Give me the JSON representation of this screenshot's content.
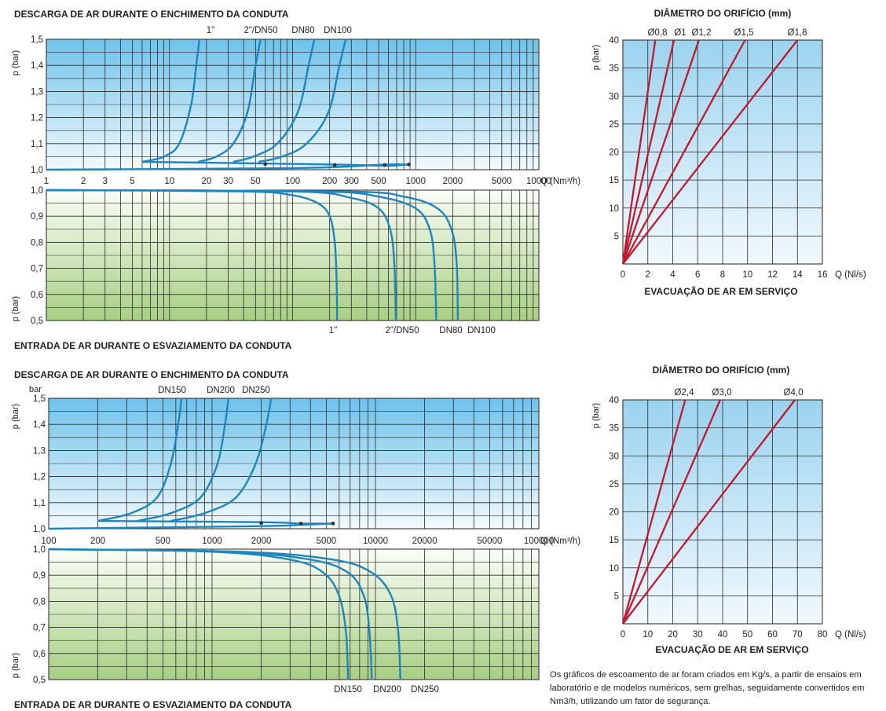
{
  "chart_data": [
    {
      "id": "air_discharge_small",
      "type": "line",
      "title": "DESCARGA DE AR DURANTE O ENCHIMENTO DA CONDUTA",
      "ylabel": "p (bar)",
      "xlabel": "Q (Nm³/h)",
      "xscale": "log",
      "xlim": [
        1,
        10000
      ],
      "ylim": [
        1.0,
        1.5
      ],
      "xticks": [
        1,
        2,
        3,
        5,
        10,
        20,
        30,
        50,
        100,
        200,
        300,
        500,
        1000,
        2000,
        5000,
        10000
      ],
      "xtick_labels": [
        "1",
        "2",
        "3",
        "5",
        "10",
        "20",
        "30",
        "50",
        "100",
        "200",
        "300",
        "500",
        "1000",
        "2000",
        "5000",
        "10000"
      ],
      "yticks": [
        1.0,
        1.1,
        1.2,
        1.3,
        1.4,
        1.5
      ],
      "ytick_labels": [
        "1,0",
        "1,1",
        "1,2",
        "1,3",
        "1,4",
        "1,5"
      ],
      "grid": true,
      "series": [
        {
          "name": "1\"",
          "points": [
            [
              6,
              1.03
            ],
            [
              9,
              1.05
            ],
            [
              12,
              1.1
            ],
            [
              15,
              1.25
            ],
            [
              16.5,
              1.4
            ],
            [
              17.5,
              1.5
            ]
          ],
          "color": "#1f86bd"
        },
        {
          "name": "2\"/DN50",
          "points": [
            [
              17,
              1.03
            ],
            [
              24,
              1.05
            ],
            [
              33,
              1.1
            ],
            [
              43,
              1.22
            ],
            [
              50,
              1.4
            ],
            [
              55,
              1.5
            ]
          ],
          "color": "#1f86bd"
        },
        {
          "name": "DN80",
          "points": [
            [
              33,
              1.03
            ],
            [
              48,
              1.05
            ],
            [
              75,
              1.1
            ],
            [
              110,
              1.22
            ],
            [
              135,
              1.4
            ],
            [
              150,
              1.5
            ]
          ],
          "color": "#1f86bd"
        },
        {
          "name": "DN100",
          "points": [
            [
              53,
              1.03
            ],
            [
              82,
              1.05
            ],
            [
              130,
              1.1
            ],
            [
              195,
              1.22
            ],
            [
              240,
              1.4
            ],
            [
              270,
              1.5
            ]
          ],
          "color": "#1f86bd"
        }
      ],
      "axis_series": [
        {
          "points": [
            [
              6,
              1.03
            ],
            [
              220,
              1.02
            ],
            [
              560,
              1.015
            ],
            [
              880,
              1.02
            ]
          ]
        },
        {
          "points": [
            [
              1,
              1.0
            ],
            [
              60,
              1.005
            ],
            [
              220,
              1.01
            ],
            [
              560,
              1.02
            ],
            [
              880,
              1.02
            ]
          ]
        }
      ],
      "markers": [
        [
          60,
          1.022
        ],
        [
          220,
          1.018
        ],
        [
          560,
          1.018
        ],
        [
          880,
          1.02
        ]
      ]
    },
    {
      "id": "air_intake_small",
      "type": "line",
      "title": "ENTRADA DE AR DURANTE O ESVAZIAMENTO DA CONDUTA",
      "ylabel": "p (bar)",
      "xscale": "log",
      "xlim": [
        1,
        10000
      ],
      "ylim": [
        0.5,
        1.0
      ],
      "yticks": [
        0.5,
        0.6,
        0.7,
        0.8,
        0.9,
        1.0
      ],
      "ytick_labels": [
        "0,5",
        "0,6",
        "0,7",
        "0,8",
        "0,9",
        "1,0"
      ],
      "grid": true,
      "series": [
        {
          "name": "1\"",
          "points": [
            [
              1,
              1.0
            ],
            [
              40,
              0.995
            ],
            [
              100,
              0.98
            ],
            [
              160,
              0.95
            ],
            [
              200,
              0.9
            ],
            [
              220,
              0.8
            ],
            [
              228,
              0.65
            ],
            [
              230,
              0.5
            ]
          ],
          "color": "#1f86bd"
        },
        {
          "name": "2\"/DN50",
          "points": [
            [
              1,
              1.0
            ],
            [
              100,
              0.995
            ],
            [
              300,
              0.97
            ],
            [
              500,
              0.93
            ],
            [
              620,
              0.85
            ],
            [
              670,
              0.72
            ],
            [
              690,
              0.5
            ]
          ],
          "color": "#1f86bd"
        },
        {
          "name": "DN80",
          "points": [
            [
              1,
              1.0
            ],
            [
              150,
              0.995
            ],
            [
              500,
              0.975
            ],
            [
              1000,
              0.93
            ],
            [
              1300,
              0.85
            ],
            [
              1420,
              0.72
            ],
            [
              1470,
              0.5
            ]
          ],
          "color": "#1f86bd"
        },
        {
          "name": "DN100",
          "points": [
            [
              1,
              1.0
            ],
            [
              250,
              0.995
            ],
            [
              800,
              0.975
            ],
            [
              1500,
              0.93
            ],
            [
              1950,
              0.85
            ],
            [
              2150,
              0.72
            ],
            [
              2200,
              0.5
            ]
          ],
          "color": "#1f86bd"
        }
      ]
    },
    {
      "id": "air_evacuation_small",
      "type": "line",
      "title": "DIÂMETRO DO ORIFÍCIO (mm)",
      "subtitle": "EVACUAÇÃO DE AR EM SERVIÇO",
      "xlabel": "Q (Nl/s)",
      "ylabel": "p (bar)",
      "xlim": [
        0,
        16
      ],
      "ylim": [
        0,
        40
      ],
      "xticks": [
        0,
        2,
        4,
        6,
        8,
        10,
        12,
        14,
        16
      ],
      "yticks": [
        5,
        10,
        15,
        20,
        25,
        30,
        35,
        40
      ],
      "grid": true,
      "series": [
        {
          "name": "Ø0,8",
          "points": [
            [
              0,
              0
            ],
            [
              2.6,
              40
            ]
          ],
          "color": "#c3182e"
        },
        {
          "name": "Ø1",
          "points": [
            [
              0,
              0
            ],
            [
              4.1,
              40
            ]
          ],
          "color": "#c3182e"
        },
        {
          "name": "Ø1,2",
          "points": [
            [
              0,
              0
            ],
            [
              6.1,
              40
            ]
          ],
          "color": "#c3182e"
        },
        {
          "name": "Ø1,5",
          "points": [
            [
              0,
              0
            ],
            [
              9.8,
              40
            ]
          ],
          "color": "#c3182e"
        },
        {
          "name": "Ø1,8",
          "points": [
            [
              0,
              0
            ],
            [
              14,
              40
            ]
          ],
          "color": "#c3182e"
        }
      ]
    },
    {
      "id": "air_discharge_large",
      "type": "line",
      "title": "DESCARGA DE AR DURANTE O ENCHIMENTO DA CONDUTA",
      "unit_label": "bar",
      "ylabel": "p (bar)",
      "xlabel": "Q (Nm³/h)",
      "xscale": "log",
      "xlim": [
        100,
        100000
      ],
      "ylim": [
        1.0,
        1.5
      ],
      "xticks": [
        100,
        200,
        500,
        1000,
        2000,
        5000,
        10000,
        20000,
        50000,
        100000
      ],
      "xtick_labels": [
        "100",
        "200",
        "500",
        "1000",
        "2000",
        "5000",
        "10000",
        "20000",
        "50000",
        "100000"
      ],
      "yticks": [
        1.0,
        1.1,
        1.2,
        1.3,
        1.4,
        1.5
      ],
      "ytick_labels": [
        "1,0",
        "1,1",
        "1,2",
        "1,3",
        "1,4",
        "1,5"
      ],
      "grid": true,
      "series": [
        {
          "name": "DN150",
          "points": [
            [
              200,
              1.03
            ],
            [
              320,
              1.06
            ],
            [
              460,
              1.12
            ],
            [
              560,
              1.25
            ],
            [
              620,
              1.4
            ],
            [
              650,
              1.5
            ]
          ],
          "color": "#1f86bd"
        },
        {
          "name": "DN200",
          "points": [
            [
              350,
              1.03
            ],
            [
              560,
              1.06
            ],
            [
              850,
              1.12
            ],
            [
              1080,
              1.25
            ],
            [
              1200,
              1.4
            ],
            [
              1260,
              1.5
            ]
          ],
          "color": "#1f86bd"
        },
        {
          "name": "DN250",
          "points": [
            [
              560,
              1.03
            ],
            [
              900,
              1.06
            ],
            [
              1400,
              1.12
            ],
            [
              1850,
              1.25
            ],
            [
              2150,
              1.4
            ],
            [
              2300,
              1.5
            ]
          ],
          "color": "#1f86bd"
        }
      ],
      "axis_series": [
        {
          "points": [
            [
              200,
              1.03
            ],
            [
              2000,
              1.025
            ],
            [
              3500,
              1.02
            ],
            [
              5500,
              1.02
            ]
          ]
        },
        {
          "points": [
            [
              100,
              1.0
            ],
            [
              2000,
              1.01
            ],
            [
              3500,
              1.015
            ],
            [
              5500,
              1.02
            ]
          ]
        }
      ],
      "markers": [
        [
          2000,
          1.022
        ],
        [
          3500,
          1.02
        ],
        [
          5500,
          1.02
        ]
      ]
    },
    {
      "id": "air_intake_large",
      "type": "line",
      "title": "ENTRADA DE AR DURANTE O ESVAZIAMENTO DA CONDUTA",
      "ylabel": "p (bar)",
      "xscale": "log",
      "xlim": [
        100,
        100000
      ],
      "ylim": [
        0.5,
        1.0
      ],
      "yticks": [
        0.5,
        0.6,
        0.7,
        0.8,
        0.9,
        1.0
      ],
      "ytick_labels": [
        "0,5",
        "0,6",
        "0,7",
        "0,8",
        "0,9",
        "1,0"
      ],
      "grid": true,
      "series": [
        {
          "name": "DN150",
          "points": [
            [
              100,
              1.0
            ],
            [
              1000,
              0.99
            ],
            [
              3000,
              0.96
            ],
            [
              4800,
              0.91
            ],
            [
              6000,
              0.82
            ],
            [
              6600,
              0.68
            ],
            [
              6800,
              0.5
            ]
          ],
          "color": "#1f86bd"
        },
        {
          "name": "DN200",
          "points": [
            [
              100,
              1.0
            ],
            [
              1200,
              0.99
            ],
            [
              4000,
              0.96
            ],
            [
              6800,
              0.91
            ],
            [
              8500,
              0.82
            ],
            [
              9200,
              0.68
            ],
            [
              9500,
              0.5
            ]
          ],
          "color": "#1f86bd"
        },
        {
          "name": "DN250",
          "points": [
            [
              100,
              1.0
            ],
            [
              1500,
              0.99
            ],
            [
              5500,
              0.96
            ],
            [
              9500,
              0.91
            ],
            [
              12500,
              0.82
            ],
            [
              13800,
              0.68
            ],
            [
              14200,
              0.5
            ]
          ],
          "color": "#1f86bd"
        }
      ]
    },
    {
      "id": "air_evacuation_large",
      "type": "line",
      "title": "DIÂMETRO DO ORIFÍCIO (mm)",
      "subtitle": "EVACUAÇÃO DE AR EM SERVIÇO",
      "xlabel": "Q (Nl/s)",
      "ylabel": "p (bar)",
      "xlim": [
        0,
        80
      ],
      "ylim": [
        0,
        40
      ],
      "xticks": [
        0,
        10,
        20,
        30,
        40,
        50,
        60,
        70,
        80
      ],
      "yticks": [
        5,
        10,
        15,
        20,
        25,
        30,
        35,
        40
      ],
      "grid": true,
      "series": [
        {
          "name": "Ø2,4",
          "points": [
            [
              0,
              0
            ],
            [
              25,
              40
            ]
          ],
          "color": "#c3182e"
        },
        {
          "name": "Ø3,0",
          "points": [
            [
              0,
              0
            ],
            [
              39,
              40
            ]
          ],
          "color": "#c3182e"
        },
        {
          "name": "Ø4,0",
          "points": [
            [
              0,
              0
            ],
            [
              69,
              40
            ]
          ],
          "color": "#c3182e"
        }
      ]
    }
  ],
  "note": "Os gráficos de escoamento de ar foram criados em Kg/s, a partir de ensaios em laboratório e de modelos numéricos, sem grelhas, seguidamente convertidos em Nm3/h, utilizando um fator de segurança.",
  "colors": {
    "curve_blue": "#1f86bd",
    "curve_red": "#c3182e",
    "sky_top": "#6ec2ea",
    "grass_bottom": "#a7cf83"
  }
}
